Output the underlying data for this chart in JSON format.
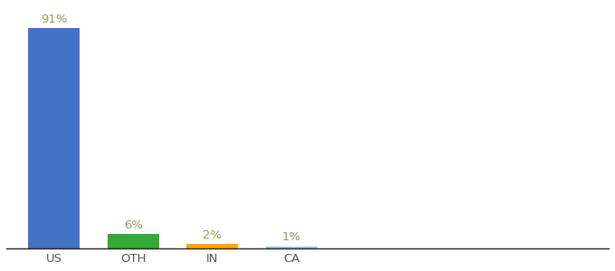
{
  "categories": [
    "US",
    "OTH",
    "IN",
    "CA"
  ],
  "values": [
    91,
    6,
    2,
    1
  ],
  "bar_colors": [
    "#4472C4",
    "#33AA33",
    "#FFA500",
    "#87CEEB"
  ],
  "labels": [
    "91%",
    "6%",
    "2%",
    "1%"
  ],
  "label_color": "#999955",
  "background_color": "#ffffff",
  "ylim": [
    0,
    100
  ],
  "bar_width": 0.65,
  "label_fontsize": 9.5,
  "tick_fontsize": 9.5,
  "x_positions": [
    0,
    1,
    2,
    3
  ],
  "xlim": [
    -0.6,
    7.0
  ]
}
